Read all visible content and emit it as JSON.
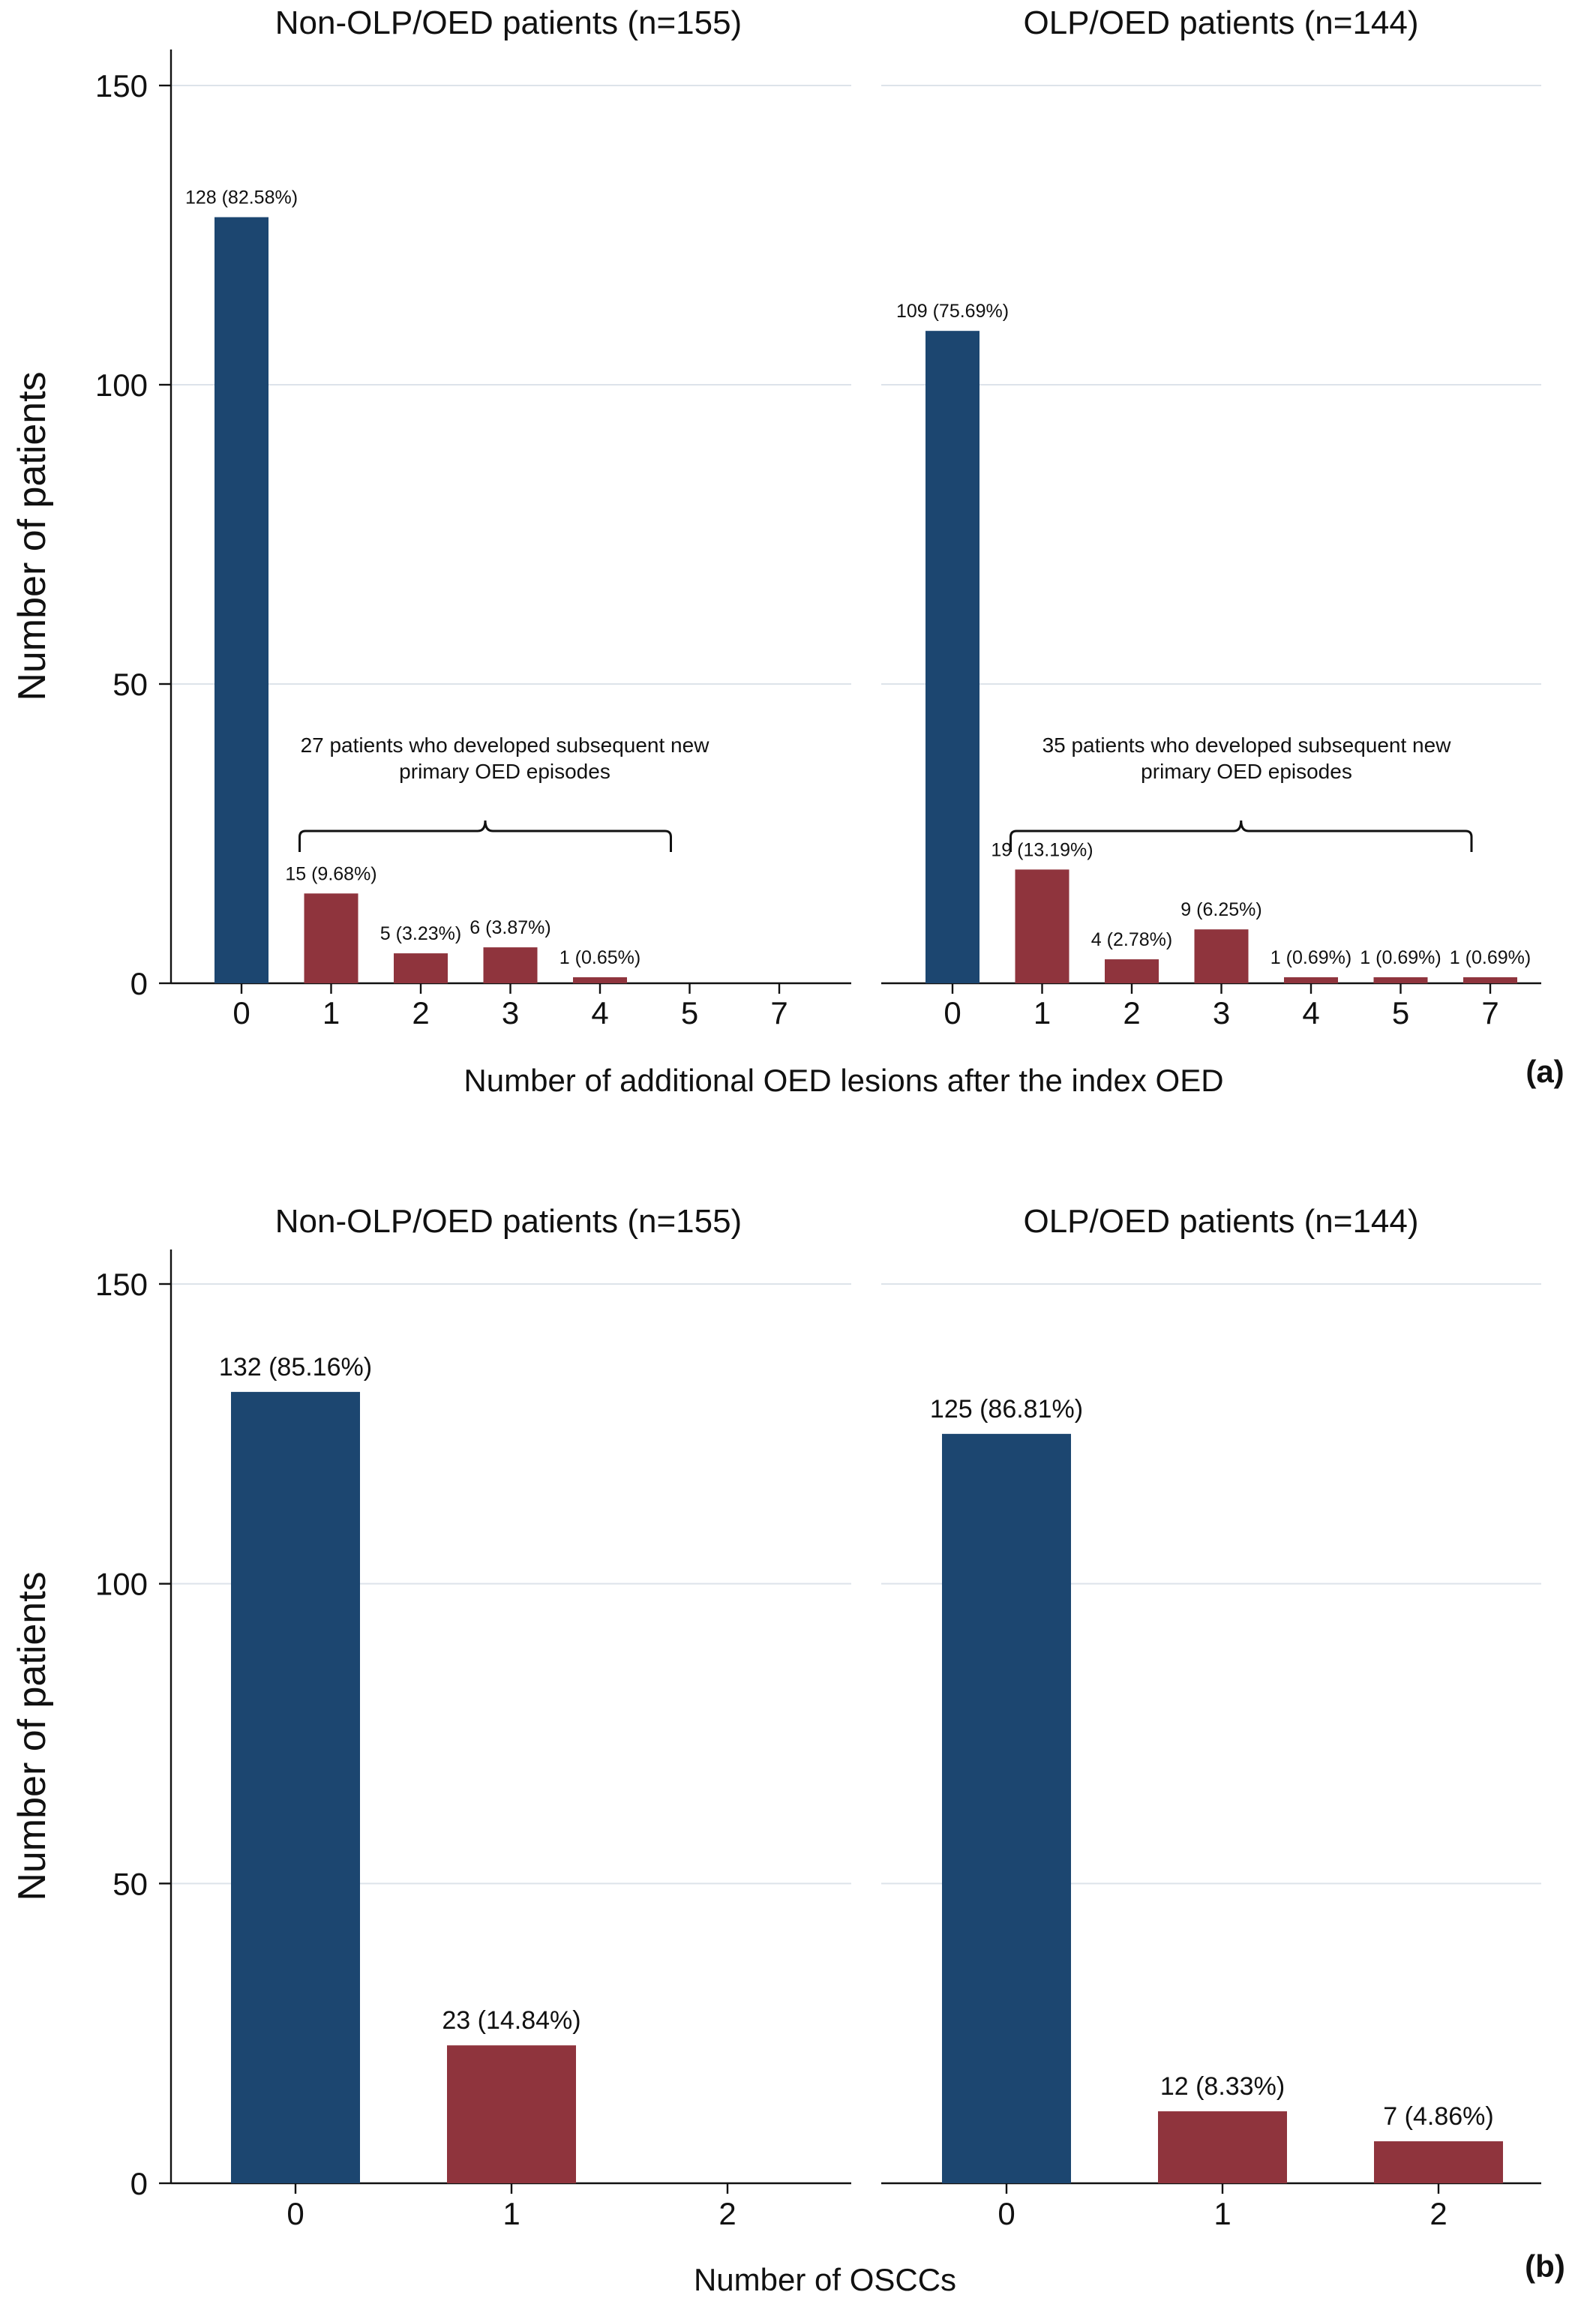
{
  "colors": {
    "zero": "#1c4670",
    "nonzero": "#8f343d",
    "grid": "#dde3ea",
    "axis": "#111111"
  },
  "chart_data": [
    {
      "type": "bar",
      "panel": "(a)",
      "xlabel": "Number of additional OED lesions after the index OED",
      "ylabel": "Number of patients",
      "ylim": [
        0,
        155
      ],
      "yticks": [
        0,
        50,
        100,
        150
      ],
      "grid": true,
      "categories": [
        "0",
        "1",
        "2",
        "3",
        "4",
        "5",
        "7"
      ],
      "subplots": [
        {
          "title": "Non-OLP/OED patients (n=155)",
          "values": [
            128,
            15,
            5,
            6,
            1,
            0,
            0
          ],
          "labels": [
            "128 (82.58%)",
            "15 (9.68%)",
            "5 (3.23%)",
            "6 (3.87%)",
            "1 (0.65%)",
            "",
            ""
          ],
          "annotation": [
            "27 patients who developed subsequent new",
            "primary OED episodes"
          ],
          "brace_span": [
            1,
            5
          ]
        },
        {
          "title": "OLP/OED patients (n=144)",
          "values": [
            109,
            19,
            4,
            9,
            1,
            1,
            1
          ],
          "labels": [
            "109 (75.69%)",
            "19 (13.19%)",
            "4 (2.78%)",
            "9 (6.25%)",
            "1 (0.69%)",
            "1 (0.69%)",
            "1 (0.69%)"
          ],
          "annotation": [
            "35 patients who developed subsequent new",
            "primary OED episodes"
          ],
          "brace_span": [
            1,
            7
          ]
        }
      ]
    },
    {
      "type": "bar",
      "panel": "(b)",
      "xlabel": "Number of OSCCs",
      "ylabel": "Number of patients",
      "ylim": [
        0,
        155
      ],
      "yticks": [
        0,
        50,
        100,
        150
      ],
      "grid": true,
      "categories": [
        "0",
        "1",
        "2"
      ],
      "subplots": [
        {
          "title": "Non-OLP/OED patients (n=155)",
          "values": [
            132,
            23,
            0
          ],
          "labels": [
            "132 (85.16%)",
            "23 (14.84%)",
            ""
          ]
        },
        {
          "title": "OLP/OED patients (n=144)",
          "values": [
            125,
            12,
            7
          ],
          "labels": [
            "125 (86.81%)",
            "12 (8.33%)",
            "7 (4.86%)"
          ]
        }
      ]
    }
  ]
}
